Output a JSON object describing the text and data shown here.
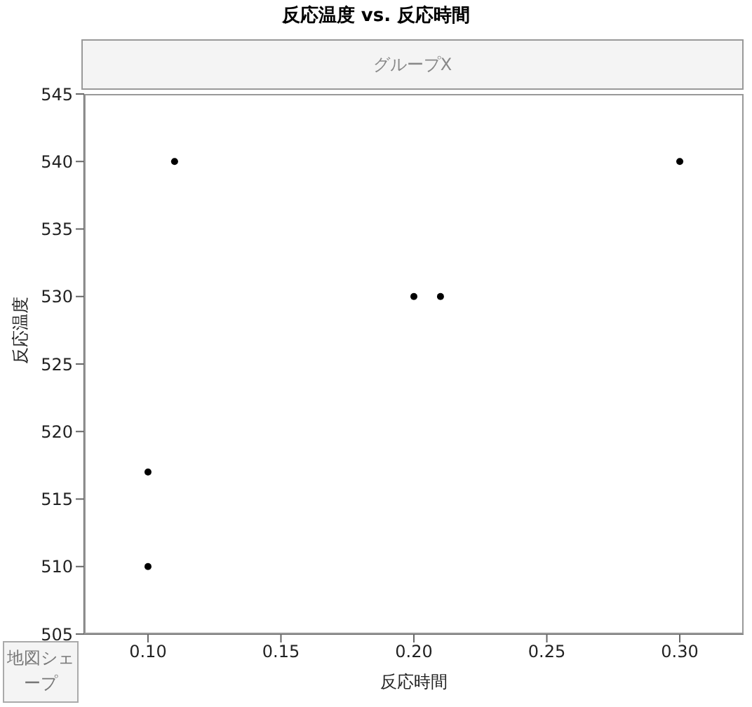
{
  "chart_data": {
    "type": "scatter",
    "title": "反応温度 vs. 反応時間",
    "subtitle": "グループX",
    "xlabel": "反応時間",
    "ylabel": "反応温度",
    "x": [
      0.1,
      0.1,
      0.11,
      0.2,
      0.21,
      0.3
    ],
    "series": [
      {
        "color": "#000000",
        "values": [
          510,
          517,
          540,
          530,
          530,
          540
        ]
      }
    ],
    "xlim": [
      0.076,
      0.324
    ],
    "xticks": [
      {
        "value": 0.1,
        "label": "0.10"
      },
      {
        "value": 0.15,
        "label": "0.15"
      },
      {
        "value": 0.2,
        "label": "0.20"
      },
      {
        "value": 0.25,
        "label": "0.25"
      },
      {
        "value": 0.3,
        "label": "0.30"
      }
    ],
    "ylim": [
      505,
      545
    ],
    "yticks": [
      505,
      510,
      515,
      520,
      525,
      530,
      535,
      540,
      545
    ],
    "annotations": [
      "地図シェープ"
    ],
    "marker": "circle",
    "grid": false
  }
}
